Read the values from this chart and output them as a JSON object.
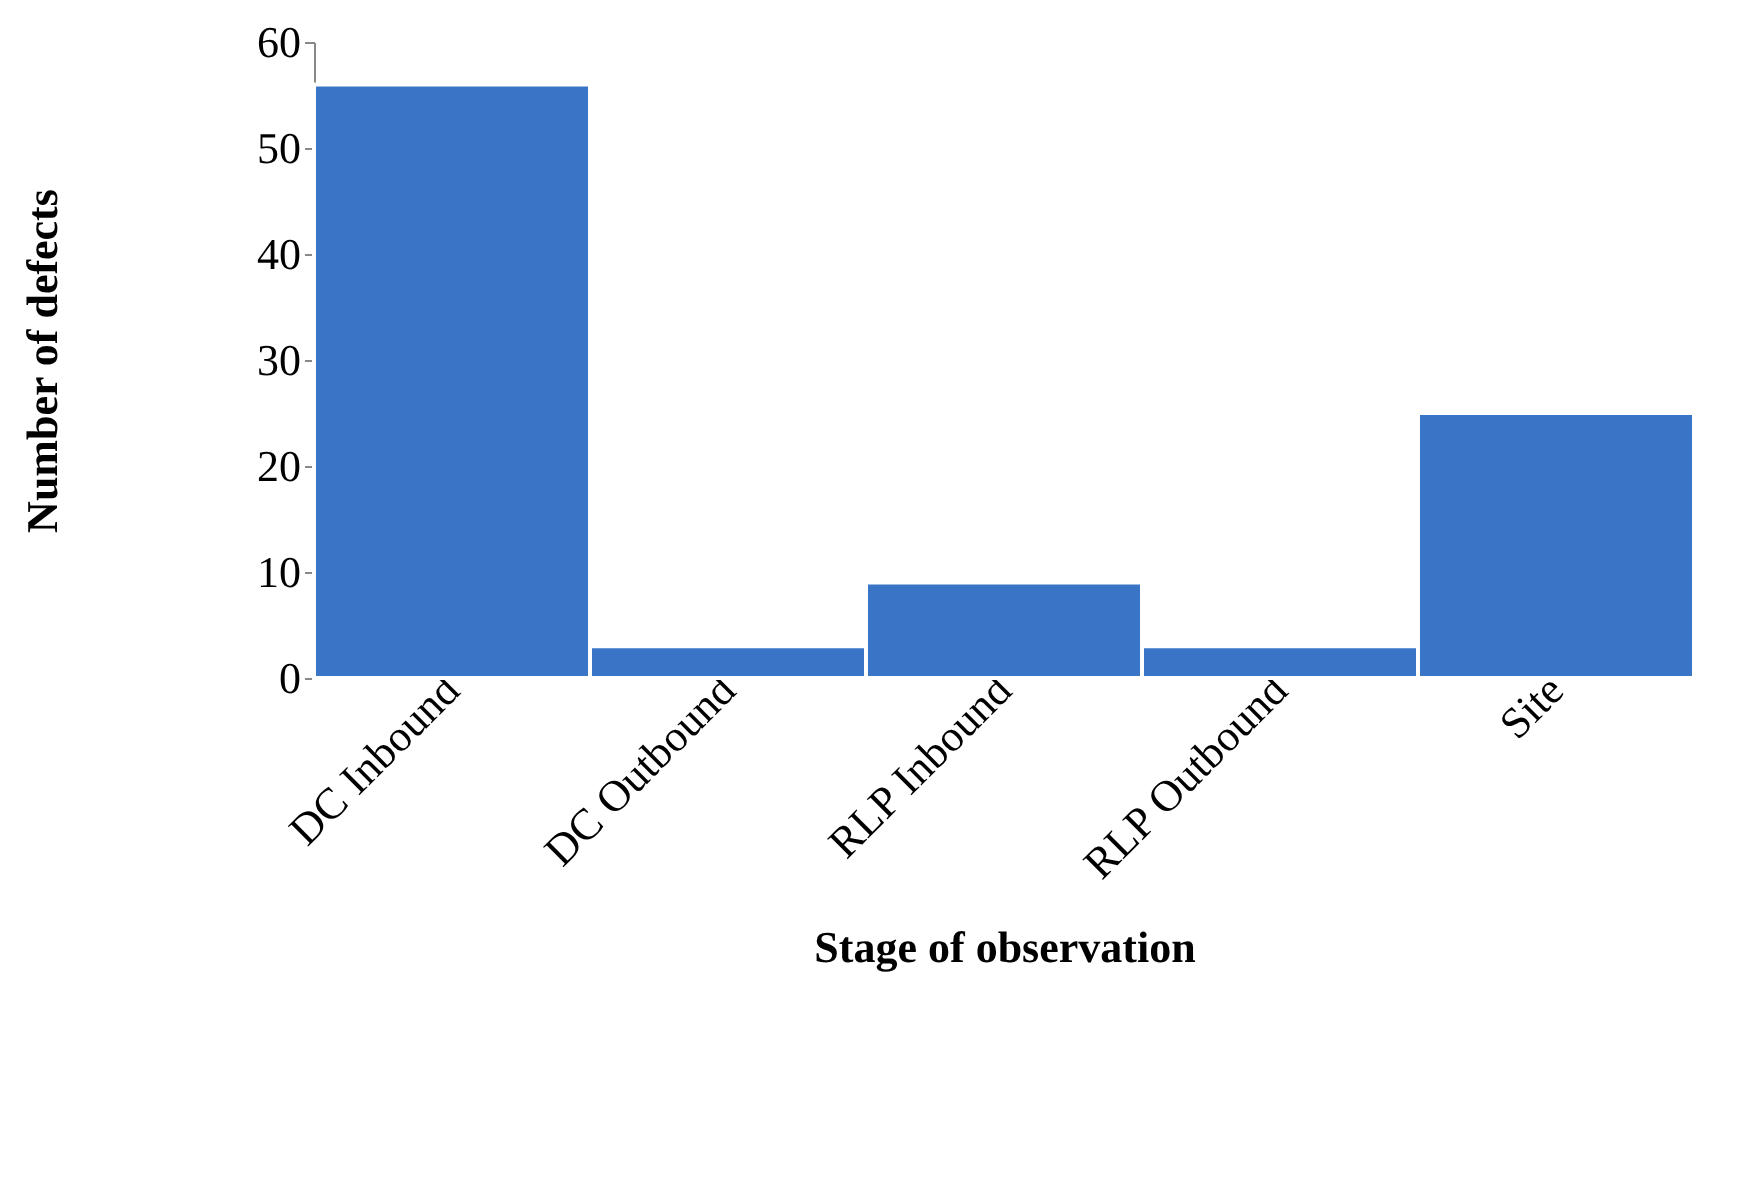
{
  "chart_data": {
    "type": "bar",
    "xlabel": "Stage of observation",
    "ylabel": "Number of defects",
    "categories": [
      "DC Inbound",
      "DC Outbound",
      "RLP Inbound",
      "RLP Outbound",
      "Site"
    ],
    "values": [
      56,
      3,
      9,
      3,
      25
    ],
    "color": "#3a74c6",
    "ylim": [
      0,
      60
    ],
    "yticks": [
      0,
      10,
      20,
      30,
      40,
      50,
      60
    ],
    "grid": false
  }
}
